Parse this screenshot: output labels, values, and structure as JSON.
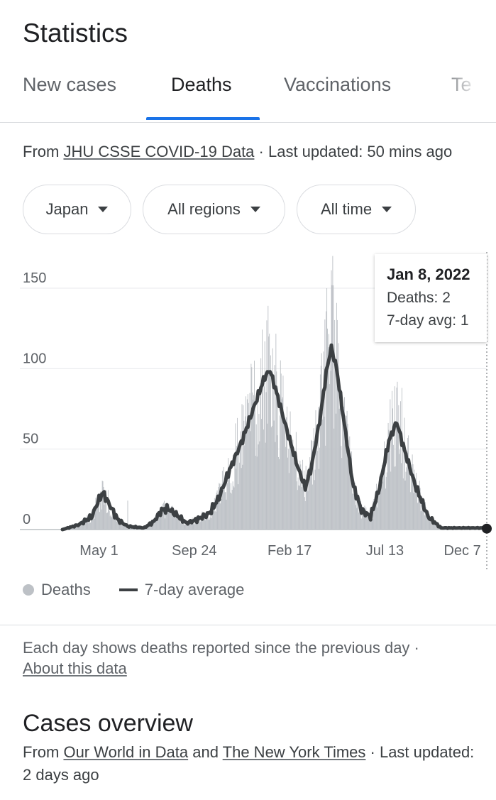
{
  "page_title": "Statistics",
  "tabs": [
    {
      "label": "New cases",
      "active": false
    },
    {
      "label": "Deaths",
      "active": true
    },
    {
      "label": "Vaccinations",
      "active": false
    },
    {
      "label": "Te",
      "active": false
    }
  ],
  "source": {
    "prefix": "From ",
    "link": "JHU CSSE COVID-19 Data",
    "suffix": " · Last updated: 50 mins ago"
  },
  "filters": {
    "location": "Japan",
    "region": "All regions",
    "time": "All time"
  },
  "tooltip": {
    "date": "Jan 8, 2022",
    "deaths": "Deaths: 2",
    "avg": "7-day avg: 1"
  },
  "legend": {
    "deaths": "Deaths",
    "avg": "7-day average"
  },
  "note": {
    "text": "Each day shows deaths reported since the previous day",
    "sep": " · ",
    "link": "About this data"
  },
  "overview": {
    "title": "Cases overview",
    "prefix": "From ",
    "link1": "Our World in Data",
    "mid": " and ",
    "link2": "The New York Times",
    "suffix": " · Last updated: 2 days ago"
  },
  "colors": {
    "accent": "#1a73e8",
    "bars": "#bdc1c6",
    "line": "#3c4043"
  },
  "chart_data": {
    "type": "bar",
    "title": "",
    "ylim": [
      0,
      170
    ],
    "yticks": [
      0,
      50,
      100,
      150
    ],
    "xtick_labels": [
      "May 1",
      "Sep 24",
      "Feb 17",
      "Jul 13",
      "Dec 7"
    ],
    "xtick_days": [
      56,
      202,
      348,
      494,
      641
    ],
    "total_days": 650,
    "grid": true,
    "legend_position": "bottom-left",
    "avg_keyframes": [
      [
        0,
        0
      ],
      [
        25,
        3
      ],
      [
        45,
        8
      ],
      [
        55,
        18
      ],
      [
        62,
        23
      ],
      [
        70,
        17
      ],
      [
        85,
        6
      ],
      [
        100,
        2
      ],
      [
        125,
        1
      ],
      [
        140,
        5
      ],
      [
        152,
        12
      ],
      [
        162,
        13
      ],
      [
        175,
        9
      ],
      [
        190,
        4
      ],
      [
        205,
        6
      ],
      [
        225,
        10
      ],
      [
        240,
        20
      ],
      [
        255,
        36
      ],
      [
        275,
        55
      ],
      [
        295,
        78
      ],
      [
        310,
        95
      ],
      [
        318,
        99
      ],
      [
        328,
        85
      ],
      [
        345,
        60
      ],
      [
        362,
        37
      ],
      [
        372,
        26
      ],
      [
        382,
        40
      ],
      [
        395,
        70
      ],
      [
        405,
        100
      ],
      [
        412,
        113
      ],
      [
        420,
        100
      ],
      [
        432,
        65
      ],
      [
        445,
        28
      ],
      [
        458,
        12
      ],
      [
        472,
        8
      ],
      [
        485,
        25
      ],
      [
        500,
        55
      ],
      [
        512,
        67
      ],
      [
        522,
        52
      ],
      [
        540,
        28
      ],
      [
        560,
        8
      ],
      [
        580,
        1
      ],
      [
        600,
        1
      ],
      [
        620,
        1
      ],
      [
        641,
        1
      ],
      [
        650,
        1
      ]
    ],
    "series": [
      {
        "name": "Deaths",
        "kind": "bar"
      },
      {
        "name": "7-day average",
        "kind": "line"
      }
    ],
    "highlight": {
      "date": "Jan 8, 2022",
      "deaths": 2,
      "avg": 1
    }
  }
}
